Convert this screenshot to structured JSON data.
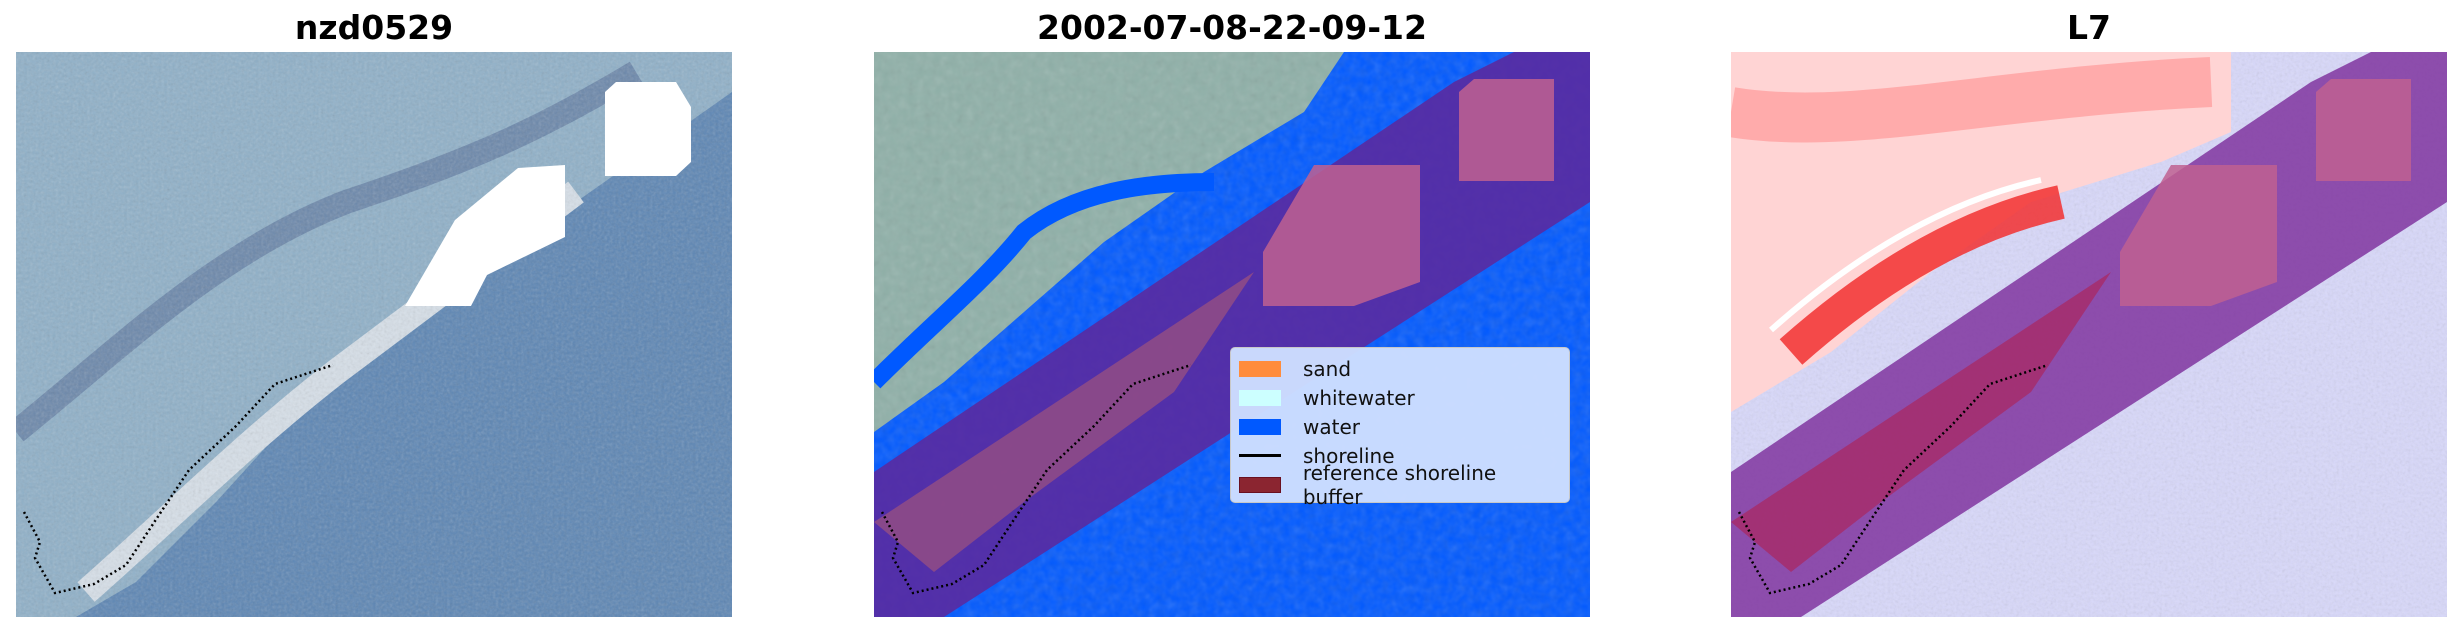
{
  "panels": [
    {
      "title": "nzd0529"
    },
    {
      "title": "2002-07-08-22-09-12"
    },
    {
      "title": "L7"
    }
  ],
  "legend": {
    "items": [
      {
        "label": "sand",
        "color": "#ff8c3c",
        "kind": "patch"
      },
      {
        "label": "whitewater",
        "color": "#ccffff",
        "kind": "patch"
      },
      {
        "label": "water",
        "color": "#0059ff",
        "kind": "patch"
      },
      {
        "label": "shoreline",
        "color": "#000000",
        "kind": "line"
      },
      {
        "label": "reference shoreline buffer",
        "color": "#8b2530",
        "kind": "patch"
      }
    ]
  },
  "colors": {
    "water_class": "#0059ff",
    "buffer_overlay": "#5a2aa0",
    "sand_overlay": "#c06090"
  }
}
